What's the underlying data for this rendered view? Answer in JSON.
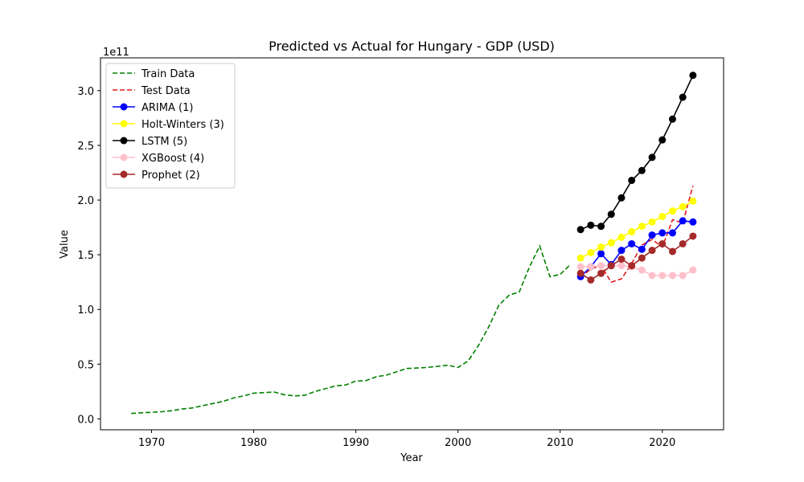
{
  "chart_data": {
    "type": "line",
    "title": "Predicted vs Actual for Hungary - GDP (USD)",
    "xlabel": "Year",
    "ylabel": "Value",
    "y_offset_label": "1e11",
    "xlim": [
      1965,
      2026
    ],
    "ylim": [
      -0.1,
      3.3
    ],
    "y_scale_note": "values in units of 1e11 USD",
    "x_ticks": [
      1970,
      1980,
      1990,
      2000,
      2010,
      2020
    ],
    "x_tick_labels": [
      "1970",
      "1980",
      "1990",
      "2000",
      "2010",
      "2020"
    ],
    "y_ticks": [
      0.0,
      0.5,
      1.0,
      1.5,
      2.0,
      2.5,
      3.0
    ],
    "y_tick_labels": [
      "0.0",
      "0.5",
      "1.0",
      "1.5",
      "2.0",
      "2.5",
      "3.0"
    ],
    "legend_position": "top-left",
    "series": [
      {
        "name": "Train Data",
        "color": "#008000",
        "dashed": true,
        "markers": false,
        "x": [
          1968,
          1969,
          1970,
          1971,
          1972,
          1973,
          1974,
          1975,
          1976,
          1977,
          1978,
          1979,
          1980,
          1981,
          1982,
          1983,
          1984,
          1985,
          1986,
          1987,
          1988,
          1989,
          1990,
          1991,
          1992,
          1993,
          1994,
          1995,
          1996,
          1997,
          1998,
          1999,
          2000,
          2001,
          2002,
          2003,
          2004,
          2005,
          2006,
          2007,
          2008,
          2009,
          2010,
          2011
        ],
        "y": [
          0.05,
          0.055,
          0.06,
          0.065,
          0.075,
          0.09,
          0.1,
          0.12,
          0.14,
          0.16,
          0.19,
          0.21,
          0.235,
          0.24,
          0.245,
          0.22,
          0.21,
          0.215,
          0.25,
          0.275,
          0.3,
          0.31,
          0.345,
          0.35,
          0.385,
          0.4,
          0.43,
          0.46,
          0.465,
          0.47,
          0.48,
          0.49,
          0.47,
          0.53,
          0.67,
          0.84,
          1.04,
          1.13,
          1.16,
          1.39,
          1.58,
          1.3,
          1.32,
          1.41
        ]
      },
      {
        "name": "Test Data",
        "color": "#e41a1c",
        "dashed": true,
        "markers": false,
        "x": [
          2012,
          2013,
          2014,
          2015,
          2016,
          2017,
          2018,
          2019,
          2020,
          2021,
          2022,
          2023
        ],
        "y": [
          1.29,
          1.37,
          1.4,
          1.25,
          1.28,
          1.42,
          1.59,
          1.64,
          1.57,
          1.82,
          1.79,
          2.13
        ]
      },
      {
        "name": "ARIMA (1)",
        "color": "#0000ff",
        "dashed": false,
        "markers": true,
        "x": [
          2012,
          2013,
          2014,
          2015,
          2016,
          2017,
          2018,
          2019,
          2020,
          2021,
          2022,
          2023
        ],
        "y": [
          1.3,
          1.39,
          1.51,
          1.41,
          1.54,
          1.6,
          1.55,
          1.68,
          1.7,
          1.7,
          1.81,
          1.8
        ]
      },
      {
        "name": "Holt-Winters (3)",
        "color": "#ffff00",
        "dashed": false,
        "markers": true,
        "x": [
          2012,
          2013,
          2014,
          2015,
          2016,
          2017,
          2018,
          2019,
          2020,
          2021,
          2022,
          2023
        ],
        "y": [
          1.47,
          1.52,
          1.57,
          1.61,
          1.66,
          1.71,
          1.76,
          1.8,
          1.85,
          1.9,
          1.94,
          1.99
        ]
      },
      {
        "name": "LSTM (5)",
        "color": "#000000",
        "dashed": false,
        "markers": true,
        "x": [
          2012,
          2013,
          2014,
          2015,
          2016,
          2017,
          2018,
          2019,
          2020,
          2021,
          2022,
          2023
        ],
        "y": [
          1.73,
          1.77,
          1.76,
          1.87,
          2.02,
          2.18,
          2.27,
          2.39,
          2.55,
          2.74,
          2.94,
          3.14
        ]
      },
      {
        "name": "XGBoost (4)",
        "color": "#ffc0cb",
        "dashed": false,
        "markers": true,
        "x": [
          2012,
          2013,
          2014,
          2015,
          2016,
          2017,
          2018,
          2019,
          2020,
          2021,
          2022,
          2023
        ],
        "y": [
          1.39,
          1.39,
          1.4,
          1.4,
          1.4,
          1.39,
          1.36,
          1.31,
          1.31,
          1.31,
          1.31,
          1.36
        ]
      },
      {
        "name": "Prophet (2)",
        "color": "#a52a2a",
        "dashed": false,
        "markers": true,
        "x": [
          2012,
          2013,
          2014,
          2015,
          2016,
          2017,
          2018,
          2019,
          2020,
          2021,
          2022,
          2023
        ],
        "y": [
          1.33,
          1.27,
          1.33,
          1.4,
          1.46,
          1.4,
          1.47,
          1.54,
          1.6,
          1.53,
          1.6,
          1.67
        ]
      }
    ]
  }
}
